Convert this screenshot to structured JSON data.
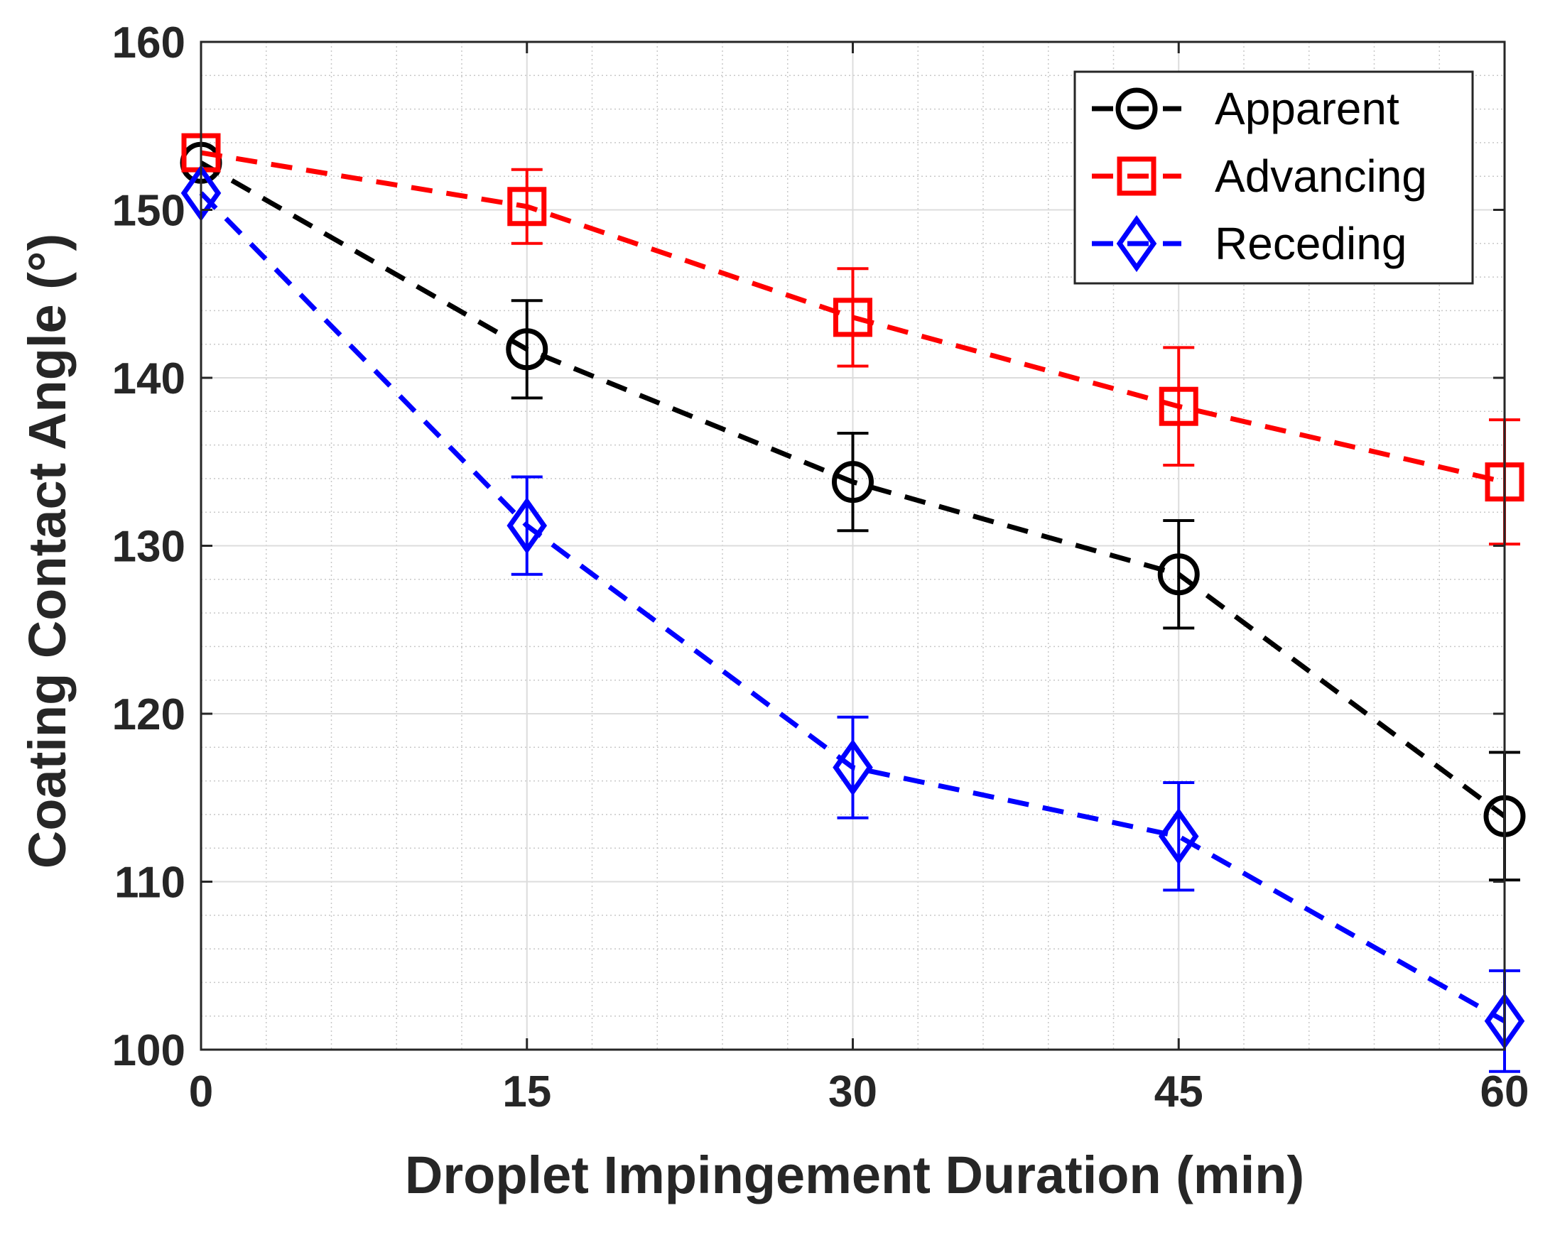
{
  "chart_data": {
    "type": "line",
    "title": "",
    "xlabel": "Droplet Impingement Duration (min)",
    "ylabel": "Coating Contact Angle (°)",
    "xlim": [
      0,
      60
    ],
    "ylim": [
      100,
      160
    ],
    "x_ticks": [
      0,
      15,
      30,
      45,
      60
    ],
    "x_tick_labels": [
      "0",
      "15",
      "30",
      "45",
      "60"
    ],
    "y_ticks": [
      100,
      110,
      120,
      130,
      140,
      150,
      160
    ],
    "y_tick_labels": [
      "100",
      "110",
      "120",
      "130",
      "140",
      "150",
      "160"
    ],
    "grid": true,
    "legend_position": "top-right",
    "x": [
      0,
      15,
      30,
      45,
      60
    ],
    "series": [
      {
        "name": "Apparent",
        "color": "#000000",
        "marker": "circle",
        "values": [
          152.8,
          141.7,
          133.8,
          128.3,
          113.9
        ],
        "errors": [
          null,
          2.9,
          2.9,
          3.2,
          3.8
        ]
      },
      {
        "name": "Advancing",
        "color": "#ff0000",
        "marker": "square",
        "values": [
          153.4,
          150.2,
          143.6,
          138.3,
          133.8
        ],
        "errors": [
          null,
          2.2,
          2.9,
          3.5,
          3.7
        ]
      },
      {
        "name": "Receding",
        "color": "#0000ff",
        "marker": "diamond",
        "values": [
          151.0,
          131.2,
          116.8,
          112.7,
          101.7
        ],
        "errors": [
          null,
          2.9,
          3.0,
          3.2,
          3.0
        ]
      }
    ]
  }
}
